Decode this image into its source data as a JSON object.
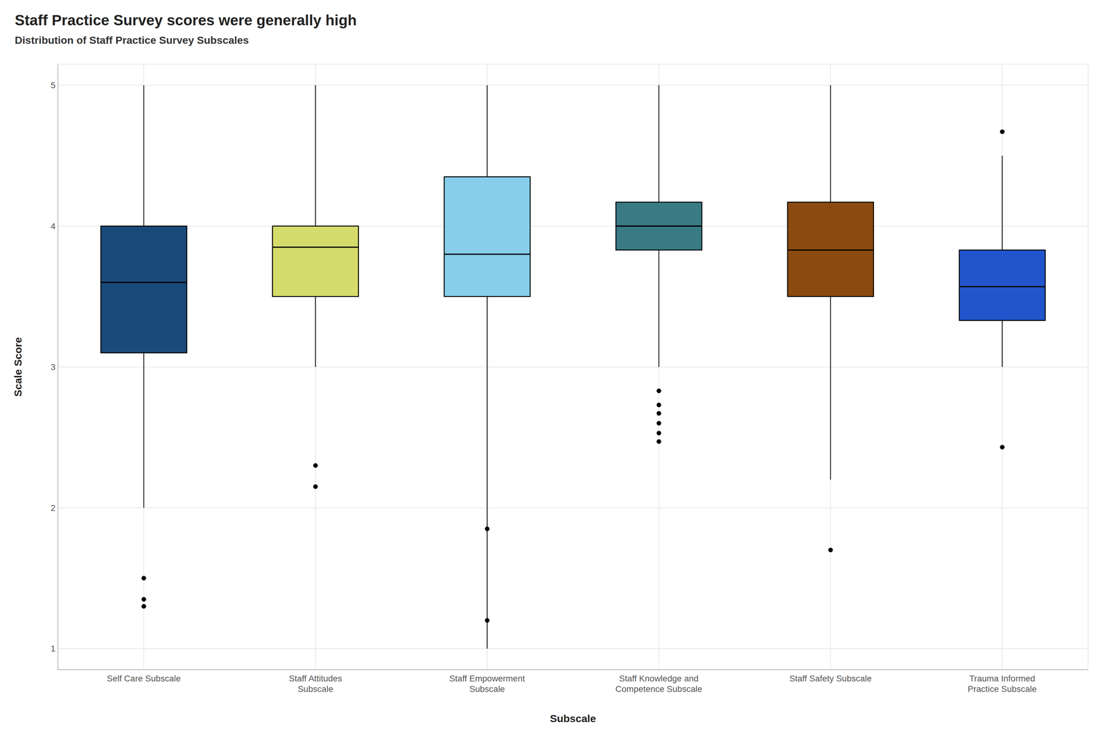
{
  "chart_data": {
    "type": "box",
    "title": "Staff Practice Survey scores were generally high",
    "subtitle": "Distribution of Staff Practice Survey Subscales",
    "xlabel": "Subscale",
    "ylabel": "Scale Score",
    "ylim": [
      0.85,
      5.15
    ],
    "yticks": [
      1,
      2,
      3,
      4,
      5
    ],
    "grid": true,
    "categories": [
      "Self Care Subscale",
      "Staff Attitudes\nSubscale",
      "Staff Empowerment\nSubscale",
      "Staff Knowledge and\nCompetence Subscale",
      "Staff Safety Subscale",
      "Trauma Informed\nPractice Subscale"
    ],
    "colors": [
      "#1A4A7A",
      "#D6DC6B",
      "#87CEEB",
      "#3A7A85",
      "#8B4A10",
      "#2255CC"
    ],
    "values": [
      {
        "med": 3.6,
        "q1": 3.1,
        "q3": 4.0,
        "whislo": 2.0,
        "whishi": 5.0,
        "fliers": [
          1.5,
          1.35,
          1.3
        ]
      },
      {
        "med": 3.85,
        "q1": 3.5,
        "q3": 4.0,
        "whislo": 3.0,
        "whishi": 5.0,
        "fliers": [
          2.15,
          2.3
        ]
      },
      {
        "med": 3.8,
        "q1": 3.5,
        "q3": 4.35,
        "whislo": 1.0,
        "whishi": 5.0,
        "fliers": [
          1.85,
          1.2
        ]
      },
      {
        "med": 4.0,
        "q1": 3.83,
        "q3": 4.17,
        "whislo": 3.0,
        "whishi": 5.0,
        "fliers": [
          2.83,
          2.73,
          2.67,
          2.6,
          2.53,
          2.47
        ]
      },
      {
        "med": 3.83,
        "q1": 3.5,
        "q3": 4.17,
        "whislo": 2.2,
        "whishi": 5.0,
        "fliers": [
          1.7
        ]
      },
      {
        "med": 3.57,
        "q1": 3.33,
        "q3": 3.83,
        "whislo": 3.0,
        "whishi": 4.5,
        "fliers": [
          4.67,
          2.43
        ]
      }
    ]
  }
}
